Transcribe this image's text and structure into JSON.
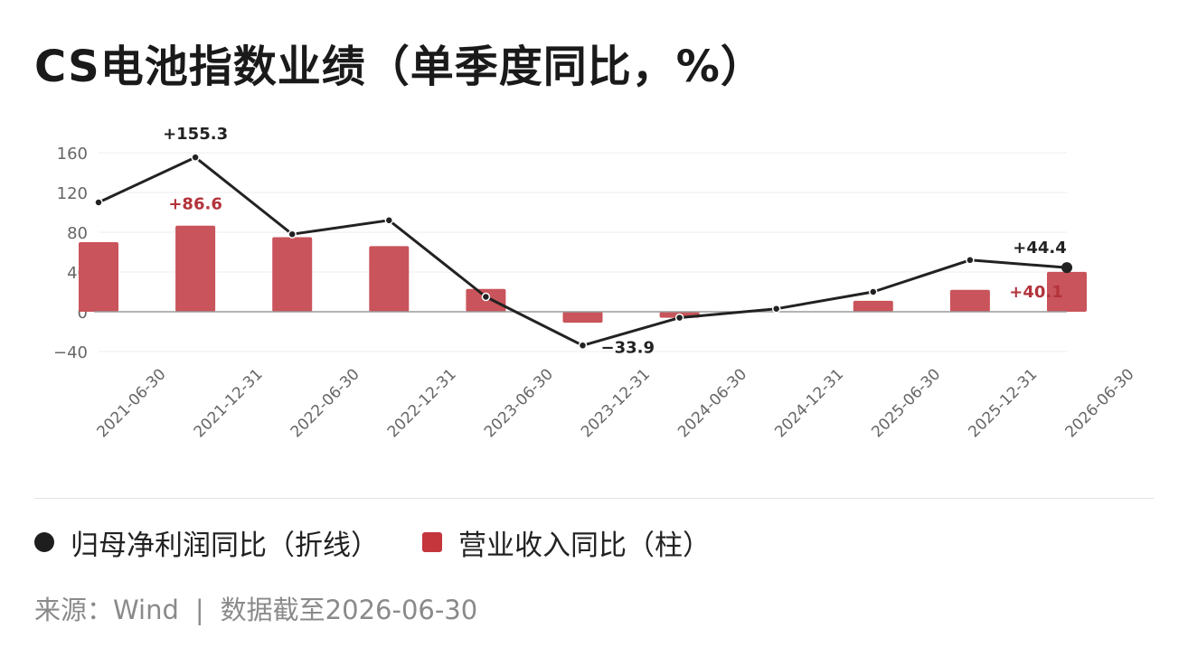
{
  "title": "CS电池指数业绩（单季度同比，%）",
  "legend": {
    "line_label": "归母净利润同比（折线）",
    "bar_label": "营业收入同比（柱）"
  },
  "source": {
    "prefix": "来源：Wind",
    "separator": "|",
    "asof": "数据截至2026-06-30"
  },
  "colors": {
    "bar": "#c9545b",
    "line": "#222222",
    "bar_label": "#b3333b",
    "grid": "#ececec",
    "axis": "#9a9a9a"
  },
  "chart_data": {
    "type": "bar+line",
    "x": [
      "2021-06-30",
      "2021-12-31",
      "2022-06-30",
      "2022-12-31",
      "2023-06-30",
      "2023-12-31",
      "2024-06-30",
      "2024-12-31",
      "2025-06-30",
      "2025-12-31",
      "2026-06-30"
    ],
    "ylim": [
      -40,
      160
    ],
    "yticks": [
      160,
      120,
      80,
      40,
      0,
      -40
    ],
    "ytick_labels": [
      "160",
      "120",
      "80",
      "40",
      "0",
      "−40"
    ],
    "grid": true,
    "series": [
      {
        "name": "营业收入同比（柱）",
        "kind": "bar",
        "values": [
          70,
          86.6,
          75,
          66,
          23,
          -11,
          -6,
          0,
          11,
          22,
          40.1
        ]
      },
      {
        "name": "归母净利润同比（折线）",
        "kind": "line",
        "values": [
          110,
          155.3,
          78,
          92,
          15,
          -33.9,
          -6,
          3,
          20,
          52,
          44.4
        ]
      }
    ],
    "annotations": [
      {
        "series": "line",
        "index": 1,
        "text": "+155.3",
        "pos": "above"
      },
      {
        "series": "bar",
        "index": 1,
        "text": "+86.6",
        "pos": "above"
      },
      {
        "series": "line",
        "index": 5,
        "text": "−33.9",
        "pos": "right"
      },
      {
        "series": "line",
        "index": 10,
        "text": "+44.4",
        "pos": "above-left"
      },
      {
        "series": "bar",
        "index": 10,
        "text": "+40.1",
        "pos": "left"
      }
    ]
  }
}
